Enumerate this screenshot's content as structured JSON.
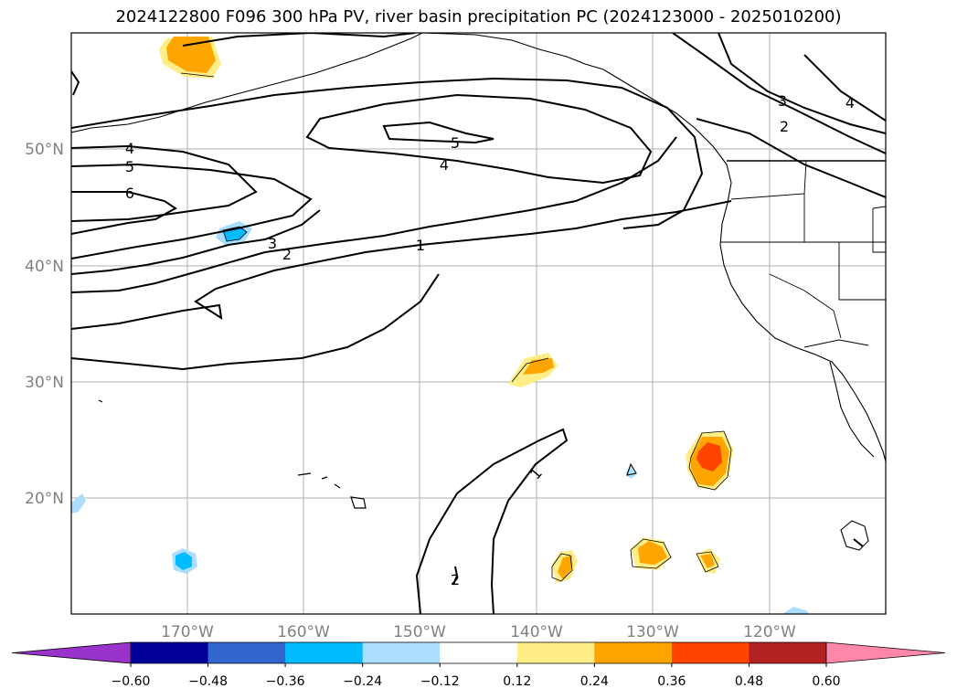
{
  "title": "2024122800 F096 300 hPa PV, river basin precipitation PC (2024123000 - 2025010200)",
  "map": {
    "lat_labels": [
      "50°N",
      "40°N",
      "30°N",
      "20°N"
    ],
    "lon_labels": [
      "170°W",
      "160°W",
      "150°W",
      "140°W",
      "130°W",
      "120°W"
    ],
    "pv_contour_labels": [
      "1",
      "1",
      "2",
      "2",
      "2",
      "3",
      "3",
      "4",
      "4",
      "4",
      "5",
      "5",
      "6"
    ]
  },
  "colorbar": {
    "tick_labels": [
      "−0.60",
      "−0.48",
      "−0.36",
      "−0.24",
      "−0.12",
      "0.12",
      "0.24",
      "0.36",
      "0.48",
      "0.60"
    ],
    "colors": [
      "#9933cc",
      "#000099",
      "#3366cc",
      "#00bbff",
      "#aaddff",
      "#ffffff",
      "#ffee88",
      "#ffa500",
      "#ff4400",
      "#b22222",
      "#ff88aa"
    ]
  }
}
